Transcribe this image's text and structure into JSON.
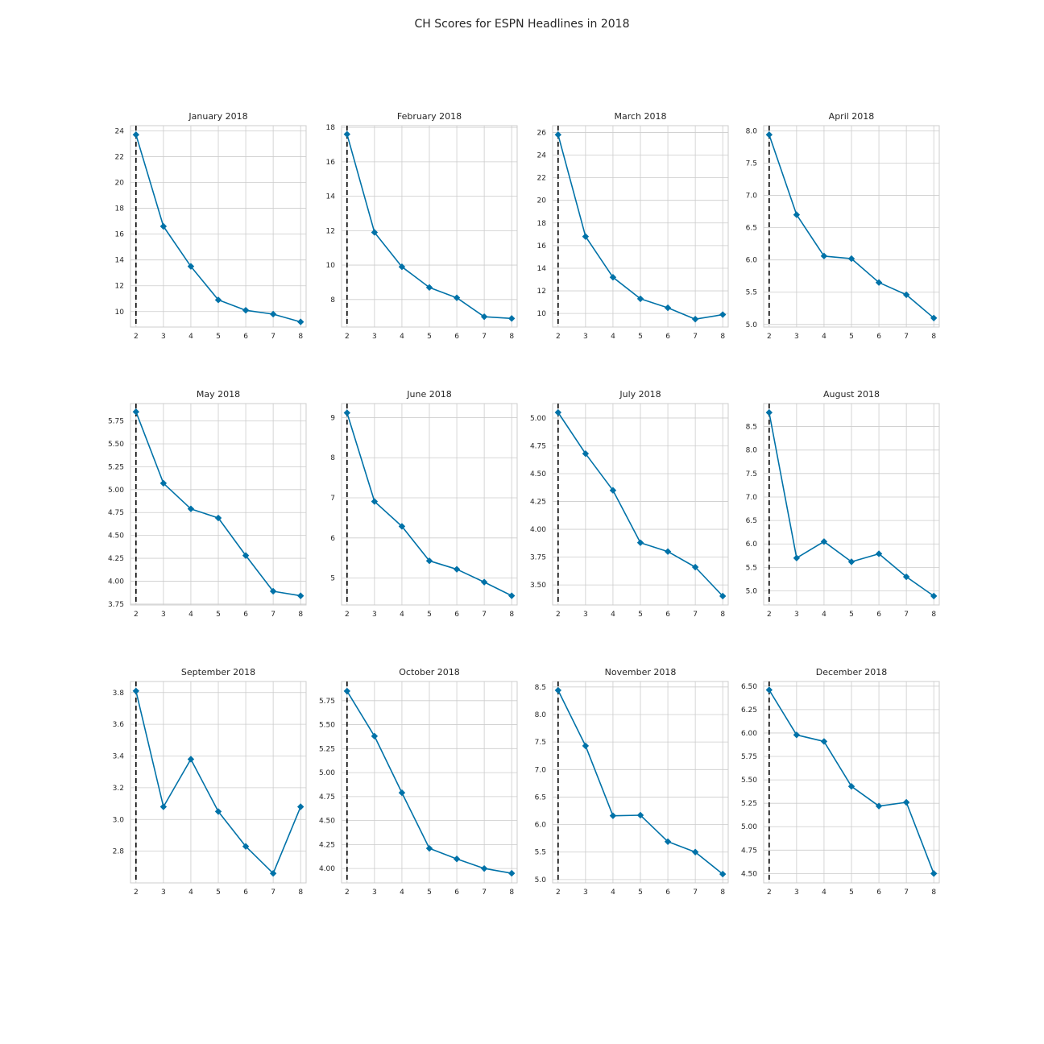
{
  "title": "CH Scores for ESPN Headlines in 2018",
  "style": {
    "line_color": "#0072a8",
    "grid_color": "#cccccc",
    "spine_color": "#cccccc",
    "vline_color": "#000000",
    "text_color": "#262626"
  },
  "chart_data": [
    {
      "type": "line",
      "title": "January 2018",
      "x": [
        2,
        3,
        4,
        5,
        6,
        7,
        8
      ],
      "y": [
        23.7,
        16.6,
        13.5,
        10.9,
        10.1,
        9.8,
        9.2
      ],
      "ylim": [
        8.8,
        24.4
      ],
      "yticks": [
        10,
        12,
        14,
        16,
        18,
        20,
        22,
        24
      ],
      "ytick_labels": [
        "10",
        "12",
        "14",
        "16",
        "18",
        "20",
        "22",
        "24"
      ],
      "xticks": [
        2,
        3,
        4,
        5,
        6,
        7,
        8
      ],
      "vline": 2,
      "grid": true
    },
    {
      "type": "line",
      "title": "February 2018",
      "x": [
        2,
        3,
        4,
        5,
        6,
        7,
        8
      ],
      "y": [
        17.6,
        11.9,
        9.9,
        8.7,
        8.1,
        7.0,
        6.9
      ],
      "ylim": [
        6.4,
        18.1
      ],
      "yticks": [
        8,
        10,
        12,
        14,
        16,
        18
      ],
      "ytick_labels": [
        "8",
        "10",
        "12",
        "14",
        "16",
        "18"
      ],
      "xticks": [
        2,
        3,
        4,
        5,
        6,
        7,
        8
      ],
      "vline": 2,
      "grid": true
    },
    {
      "type": "line",
      "title": "March 2018",
      "x": [
        2,
        3,
        4,
        5,
        6,
        7,
        8
      ],
      "y": [
        25.8,
        16.8,
        13.2,
        11.3,
        10.5,
        9.5,
        9.9
      ],
      "ylim": [
        8.8,
        26.6
      ],
      "yticks": [
        10,
        12,
        14,
        16,
        18,
        20,
        22,
        24,
        26
      ],
      "ytick_labels": [
        "10",
        "12",
        "14",
        "16",
        "18",
        "20",
        "22",
        "24",
        "26"
      ],
      "xticks": [
        2,
        3,
        4,
        5,
        6,
        7,
        8
      ],
      "vline": 2,
      "grid": true
    },
    {
      "type": "line",
      "title": "April 2018",
      "x": [
        2,
        3,
        4,
        5,
        6,
        7,
        8
      ],
      "y": [
        7.94,
        6.7,
        6.06,
        6.02,
        5.65,
        5.46,
        5.1
      ],
      "ylim": [
        4.96,
        8.08
      ],
      "yticks": [
        5.0,
        5.5,
        6.0,
        6.5,
        7.0,
        7.5,
        8.0
      ],
      "ytick_labels": [
        "5.0",
        "5.5",
        "6.0",
        "6.5",
        "7.0",
        "7.5",
        "8.0"
      ],
      "xticks": [
        2,
        3,
        4,
        5,
        6,
        7,
        8
      ],
      "vline": 2,
      "grid": true
    },
    {
      "type": "line",
      "title": "May 2018",
      "x": [
        2,
        3,
        4,
        5,
        6,
        7,
        8
      ],
      "y": [
        5.85,
        5.07,
        4.79,
        4.69,
        4.28,
        3.89,
        3.84
      ],
      "ylim": [
        3.74,
        5.94
      ],
      "yticks": [
        3.75,
        4.0,
        4.25,
        4.5,
        4.75,
        5.0,
        5.25,
        5.5,
        5.75
      ],
      "ytick_labels": [
        "3.75",
        "4.00",
        "4.25",
        "4.50",
        "4.75",
        "5.00",
        "5.25",
        "5.50",
        "5.75"
      ],
      "xticks": [
        2,
        3,
        4,
        5,
        6,
        7,
        8
      ],
      "vline": 2,
      "grid": true
    },
    {
      "type": "line",
      "title": "June 2018",
      "x": [
        2,
        3,
        4,
        5,
        6,
        7,
        8
      ],
      "y": [
        9.12,
        6.91,
        6.29,
        5.43,
        5.22,
        4.9,
        4.56
      ],
      "ylim": [
        4.33,
        9.35
      ],
      "yticks": [
        5,
        6,
        7,
        8,
        9
      ],
      "ytick_labels": [
        "5",
        "6",
        "7",
        "8",
        "9"
      ],
      "xticks": [
        2,
        3,
        4,
        5,
        6,
        7,
        8
      ],
      "vline": 2,
      "grid": true
    },
    {
      "type": "line",
      "title": "July 2018",
      "x": [
        2,
        3,
        4,
        5,
        6,
        7,
        8
      ],
      "y": [
        5.05,
        4.68,
        4.35,
        3.88,
        3.8,
        3.66,
        3.4
      ],
      "ylim": [
        3.32,
        5.13
      ],
      "yticks": [
        3.5,
        3.75,
        4.0,
        4.25,
        4.5,
        4.75,
        5.0
      ],
      "ytick_labels": [
        "3.50",
        "3.75",
        "4.00",
        "4.25",
        "4.50",
        "4.75",
        "5.00"
      ],
      "xticks": [
        2,
        3,
        4,
        5,
        6,
        7,
        8
      ],
      "vline": 2,
      "grid": true
    },
    {
      "type": "line",
      "title": "August 2018",
      "x": [
        2,
        3,
        4,
        5,
        6,
        7,
        8
      ],
      "y": [
        8.8,
        5.7,
        6.05,
        5.62,
        5.79,
        5.3,
        4.89
      ],
      "ylim": [
        4.7,
        8.99
      ],
      "yticks": [
        5.0,
        5.5,
        6.0,
        6.5,
        7.0,
        7.5,
        8.0,
        8.5
      ],
      "ytick_labels": [
        "5.0",
        "5.5",
        "6.0",
        "6.5",
        "7.0",
        "7.5",
        "8.0",
        "8.5"
      ],
      "xticks": [
        2,
        3,
        4,
        5,
        6,
        7,
        8
      ],
      "vline": 2,
      "grid": true
    },
    {
      "type": "line",
      "title": "September 2018",
      "x": [
        2,
        3,
        4,
        5,
        6,
        7,
        8
      ],
      "y": [
        3.81,
        3.08,
        3.38,
        3.05,
        2.83,
        2.66,
        3.08
      ],
      "ylim": [
        2.6,
        3.87
      ],
      "yticks": [
        2.8,
        3.0,
        3.2,
        3.4,
        3.6,
        3.8
      ],
      "ytick_labels": [
        "2.8",
        "3.0",
        "3.2",
        "3.4",
        "3.6",
        "3.8"
      ],
      "xticks": [
        2,
        3,
        4,
        5,
        6,
        7,
        8
      ],
      "vline": 2,
      "grid": true
    },
    {
      "type": "line",
      "title": "October 2018",
      "x": [
        2,
        3,
        4,
        5,
        6,
        7,
        8
      ],
      "y": [
        5.85,
        5.38,
        4.79,
        4.21,
        4.1,
        4.0,
        3.95
      ],
      "ylim": [
        3.85,
        5.95
      ],
      "yticks": [
        4.0,
        4.25,
        4.5,
        4.75,
        5.0,
        5.25,
        5.5,
        5.75
      ],
      "ytick_labels": [
        "4.00",
        "4.25",
        "4.50",
        "4.75",
        "5.00",
        "5.25",
        "5.50",
        "5.75"
      ],
      "xticks": [
        2,
        3,
        4,
        5,
        6,
        7,
        8
      ],
      "vline": 2,
      "grid": true
    },
    {
      "type": "line",
      "title": "November 2018",
      "x": [
        2,
        3,
        4,
        5,
        6,
        7,
        8
      ],
      "y": [
        8.44,
        7.43,
        6.16,
        6.17,
        5.69,
        5.5,
        5.1
      ],
      "ylim": [
        4.94,
        8.6
      ],
      "yticks": [
        5.0,
        5.5,
        6.0,
        6.5,
        7.0,
        7.5,
        8.0,
        8.5
      ],
      "ytick_labels": [
        "5.0",
        "5.5",
        "6.0",
        "6.5",
        "7.0",
        "7.5",
        "8.0",
        "8.5"
      ],
      "xticks": [
        2,
        3,
        4,
        5,
        6,
        7,
        8
      ],
      "vline": 2,
      "grid": true
    },
    {
      "type": "line",
      "title": "December 2018",
      "x": [
        2,
        3,
        4,
        5,
        6,
        7,
        8
      ],
      "y": [
        6.46,
        5.98,
        5.91,
        5.43,
        5.22,
        5.26,
        4.5
      ],
      "ylim": [
        4.4,
        6.55
      ],
      "yticks": [
        4.5,
        4.75,
        5.0,
        5.25,
        5.5,
        5.75,
        6.0,
        6.25,
        6.5
      ],
      "ytick_labels": [
        "4.50",
        "4.75",
        "5.00",
        "5.25",
        "5.50",
        "5.75",
        "6.00",
        "6.25",
        "6.50"
      ],
      "xticks": [
        2,
        3,
        4,
        5,
        6,
        7,
        8
      ],
      "vline": 2,
      "grid": true
    }
  ]
}
